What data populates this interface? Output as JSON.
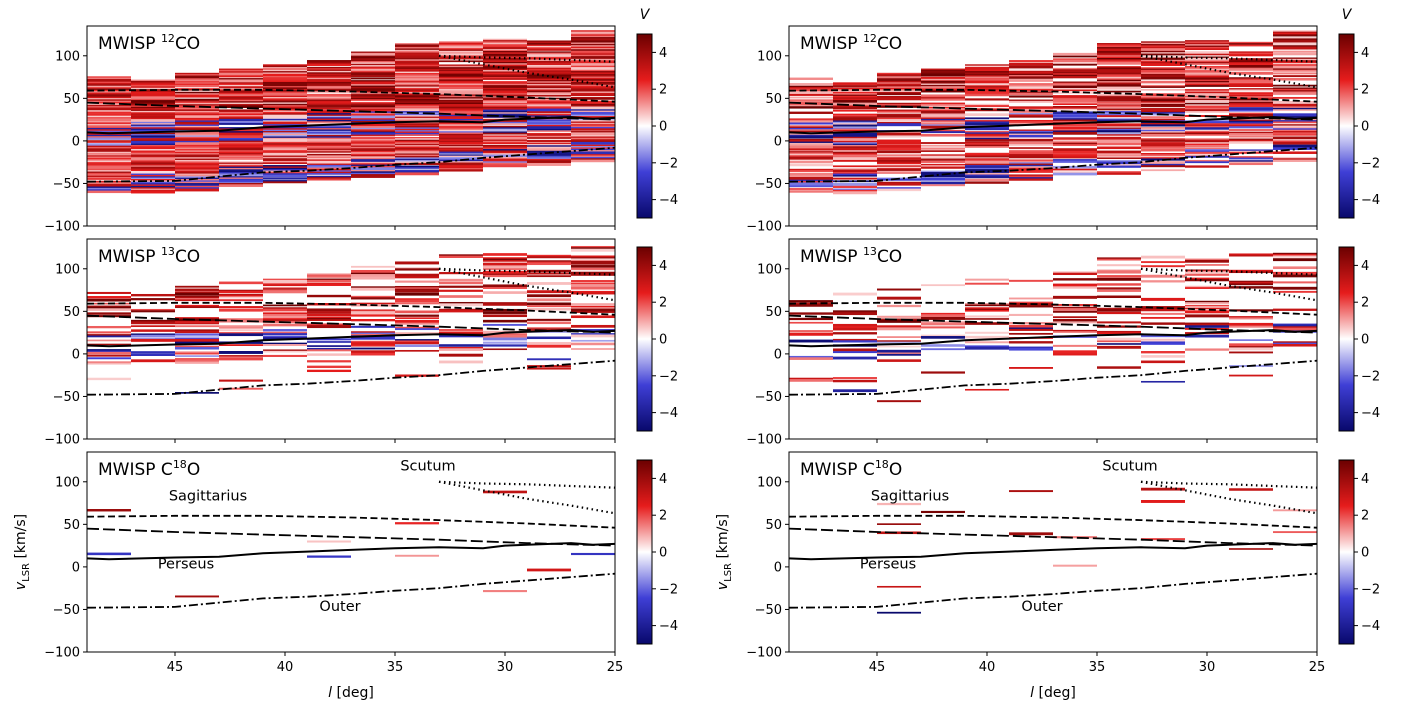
{
  "colorbar": {
    "label": "V",
    "range": [
      -5,
      5
    ],
    "ticks": [
      "4",
      "2",
      "0",
      "−2",
      "−4"
    ],
    "tick_values": [
      4,
      2,
      0,
      -2,
      -4
    ],
    "colors": {
      "low": "#08086b",
      "mid_low": "#3f3fd6",
      "mid": "#ffffff",
      "mid_high": "#e61c1c",
      "high": "#6b0000"
    }
  },
  "x_axis": {
    "label_var": "l",
    "label_unit": "[deg]",
    "ticks": [
      "45",
      "40",
      "35",
      "30",
      "25"
    ],
    "tick_values": [
      45,
      40,
      35,
      30,
      25
    ],
    "range": [
      49,
      25
    ]
  },
  "y_axis": {
    "label_var": "v",
    "label_sub": "LSR",
    "label_unit": "[km/s]",
    "ticks": [
      "100",
      "50",
      "0",
      "−50",
      "−100"
    ],
    "tick_values": [
      100,
      50,
      0,
      -50,
      -100
    ],
    "range": [
      -100,
      135
    ]
  },
  "rows": [
    {
      "tracer": "12CO",
      "title_prefix": "MWISP ",
      "sup": "12",
      "title_suffix": "CO",
      "density": 1.0,
      "coverage": [
        1.0,
        0.85
      ]
    },
    {
      "tracer": "13CO",
      "title_prefix": "MWISP ",
      "sup": "13",
      "title_suffix": "CO",
      "density": 0.55,
      "coverage": [
        0.75,
        0.6
      ]
    },
    {
      "tracer": "C18O",
      "title_prefix": "MWISP C",
      "sup": "18",
      "title_suffix": "O",
      "density": 0.08,
      "coverage": [
        0.5,
        0.3
      ]
    }
  ],
  "arm_labels": {
    "scutum": "Scutum",
    "sagittarius": "Sagittarius",
    "perseus": "Perseus",
    "outer": "Outer"
  },
  "chart_data": {
    "type": "heatmap",
    "panels": "3 rows (12CO, 13CO, C18O) x 2 columns, each with colour bar V in [-5, 5]",
    "x_unit": "l [deg]",
    "y_unit": "v_LSR [km/s]",
    "spiral_arms": [
      {
        "name": "Scutum",
        "style": "dotted",
        "x": [
          33,
          31,
          29,
          27,
          25
        ],
        "y": [
          100,
          98,
          97,
          95,
          93
        ]
      },
      {
        "name": "Scutum",
        "style": "dotted",
        "x": [
          33,
          31,
          29,
          27,
          25
        ],
        "y": [
          100,
          90,
          80,
          72,
          63
        ]
      },
      {
        "name": "Sagittarius",
        "style": "dashed",
        "x": [
          49,
          45,
          41,
          37,
          33,
          29,
          25
        ],
        "y": [
          59,
          60,
          60,
          58,
          55,
          51,
          46
        ]
      },
      {
        "name": "",
        "style": "dashed-long",
        "x": [
          49,
          45,
          41,
          37,
          33,
          29,
          25
        ],
        "y": [
          45,
          41,
          38,
          35,
          32,
          28,
          25
        ]
      },
      {
        "name": "Perseus",
        "style": "solid",
        "x": [
          49,
          48,
          45,
          43,
          41,
          39,
          37,
          35,
          33,
          31,
          30,
          29,
          27,
          26,
          25
        ],
        "y": [
          10,
          9,
          11,
          12,
          16,
          18,
          20,
          22,
          23,
          22,
          25,
          26,
          28,
          26,
          27
        ]
      },
      {
        "name": "Outer",
        "style": "dashdot",
        "x": [
          49,
          45,
          43,
          41,
          39,
          37,
          35,
          33,
          31,
          29,
          27,
          25
        ],
        "y": [
          -48,
          -47,
          -42,
          -37,
          -35,
          -32,
          -28,
          -25,
          -20,
          -16,
          -12,
          -8
        ]
      }
    ],
    "bin_columns_l": [
      [
        49,
        47
      ],
      [
        47,
        45
      ],
      [
        45,
        43
      ],
      [
        43,
        41
      ],
      [
        41,
        39
      ],
      [
        39,
        37
      ],
      [
        37,
        35
      ],
      [
        35,
        33
      ],
      [
        33,
        31
      ],
      [
        31,
        29
      ],
      [
        29,
        27
      ],
      [
        27,
        25
      ]
    ],
    "bin_column_vmax": [
      76,
      72,
      80,
      85,
      90,
      95,
      105,
      115,
      117,
      120,
      118,
      130
    ]
  }
}
